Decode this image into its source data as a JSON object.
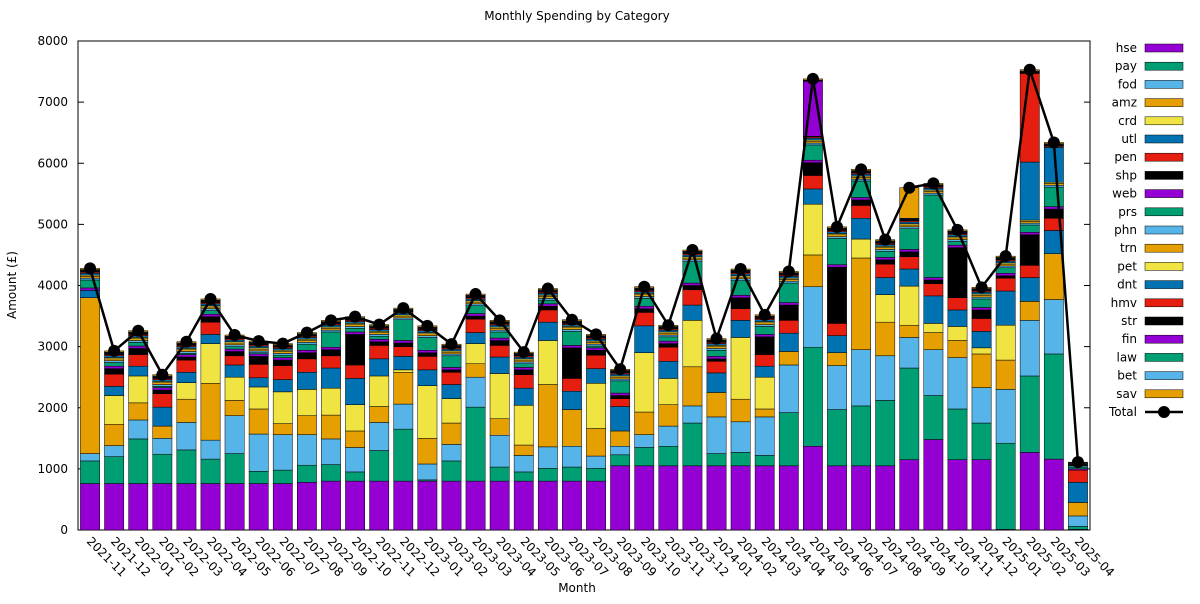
{
  "chart_data": {
    "type": "stacked-bar",
    "title": "Monthly Spending by Category",
    "x_label": "Month",
    "y_label": "Amount (£)",
    "ylim": [
      0,
      8000
    ],
    "yticks": [
      0,
      1000,
      2000,
      3000,
      4000,
      5000,
      6000,
      7000,
      8000
    ],
    "categories": [
      "2021-11",
      "2021-12",
      "2022-01",
      "2022-02",
      "2022-03",
      "2022-04",
      "2022-05",
      "2022-06",
      "2022-07",
      "2022-08",
      "2022-09",
      "2022-10",
      "2022-11",
      "2022-12",
      "2023-01",
      "2023-02",
      "2023-03",
      "2023-04",
      "2023-05",
      "2023-06",
      "2023-07",
      "2023-08",
      "2023-09",
      "2023-10",
      "2023-11",
      "2023-12",
      "2024-01",
      "2024-02",
      "2024-03",
      "2024-04",
      "2024-05",
      "2024-06",
      "2024-07",
      "2024-08",
      "2024-09",
      "2024-10",
      "2024-11",
      "2024-12",
      "2025-01",
      "2025-02",
      "2025-03",
      "2025-04"
    ],
    "series": [
      {
        "name": "hse",
        "color": "#9400d3",
        "values": [
          760,
          760,
          760,
          760,
          760,
          760,
          760,
          760,
          760,
          780,
          800,
          800,
          800,
          800,
          800,
          800,
          800,
          800,
          800,
          800,
          800,
          800,
          1050,
          1050,
          1050,
          1050,
          1050,
          1050,
          1050,
          1050,
          1370,
          1050,
          1050,
          1050,
          1150,
          1480,
          1150,
          1150,
          10,
          1270,
          1160,
          10
        ]
      },
      {
        "name": "pay",
        "color": "#009e73",
        "values": [
          370,
          440,
          730,
          480,
          550,
          400,
          490,
          200,
          220,
          280,
          270,
          150,
          500,
          850,
          20,
          330,
          1210,
          230,
          150,
          210,
          230,
          210,
          180,
          300,
          320,
          700,
          200,
          220,
          170,
          870,
          1620,
          920,
          980,
          1070,
          1500,
          720,
          830,
          600,
          1410,
          1250,
          1720,
          50
        ]
      },
      {
        "name": "fod",
        "color": "#56b4e9",
        "values": [
          120,
          180,
          310,
          260,
          450,
          310,
          620,
          610,
          580,
          500,
          420,
          400,
          460,
          410,
          260,
          270,
          490,
          520,
          270,
          350,
          340,
          200,
          140,
          210,
          330,
          280,
          600,
          500,
          630,
          780,
          990,
          720,
          920,
          730,
          500,
          750,
          840,
          580,
          880,
          910,
          890,
          170
        ]
      },
      {
        "name": "amz",
        "color": "#e69f00",
        "values": [
          2550,
          350,
          280,
          200,
          380,
          930,
          250,
          410,
          180,
          310,
          390,
          270,
          260,
          520,
          420,
          350,
          220,
          270,
          170,
          1020,
          600,
          450,
          250,
          370,
          350,
          640,
          400,
          370,
          130,
          220,
          520,
          210,
          1500,
          550,
          200,
          280,
          280,
          550,
          480,
          310,
          750,
          220
        ]
      },
      {
        "name": "crd",
        "color": "#f0e442",
        "values": [
          0,
          470,
          440,
          0,
          270,
          650,
          380,
          360,
          520,
          430,
          440,
          430,
          500,
          40,
          860,
          400,
          330,
          740,
          650,
          720,
          0,
          740,
          0,
          970,
          430,
          760,
          0,
          1010,
          520,
          0,
          830,
          0,
          310,
          450,
          640,
          150,
          230,
          100,
          570,
          0,
          0,
          0
        ]
      },
      {
        "name": "utl",
        "color": "#0072b2",
        "values": [
          120,
          150,
          160,
          310,
          170,
          150,
          200,
          150,
          200,
          280,
          330,
          430,
          280,
          220,
          260,
          230,
          180,
          270,
          280,
          300,
          300,
          240,
          400,
          440,
          280,
          250,
          320,
          280,
          180,
          300,
          250,
          280,
          340,
          280,
          280,
          450,
          270,
          270,
          560,
          390,
          380,
          330
        ]
      },
      {
        "name": "pen",
        "color": "#e51e10",
        "values": [
          0,
          200,
          190,
          220,
          200,
          200,
          150,
          220,
          230,
          220,
          200,
          220,
          220,
          160,
          220,
          200,
          220,
          190,
          220,
          200,
          210,
          220,
          130,
          220,
          230,
          250,
          190,
          190,
          190,
          210,
          220,
          200,
          210,
          220,
          200,
          200,
          200,
          210,
          210,
          200,
          200,
          200
        ]
      },
      {
        "name": "shp",
        "color": "#000000",
        "values": [
          0,
          90,
          100,
          60,
          50,
          90,
          70,
          130,
          90,
          100,
          100,
          500,
          60,
          60,
          60,
          40,
          50,
          80,
          80,
          60,
          500,
          80,
          50,
          60,
          60,
          70,
          40,
          180,
          290,
          250,
          210,
          920,
          90,
          70,
          80,
          60,
          820,
          140,
          40,
          500,
          150,
          0
        ]
      },
      {
        "name": "web",
        "color": "#9400d3",
        "values": [
          40,
          40,
          40,
          40,
          40,
          40,
          40,
          40,
          40,
          40,
          40,
          40,
          40,
          40,
          40,
          40,
          40,
          40,
          40,
          40,
          40,
          40,
          40,
          40,
          40,
          40,
          40,
          40,
          40,
          40,
          40,
          40,
          40,
          40,
          40,
          40,
          40,
          40,
          40,
          40,
          40,
          20
        ]
      },
      {
        "name": "prs",
        "color": "#009e73",
        "values": [
          130,
          60,
          60,
          20,
          20,
          60,
          40,
          20,
          40,
          100,
          250,
          60,
          50,
          340,
          210,
          190,
          130,
          100,
          60,
          60,
          230,
          30,
          200,
          130,
          70,
          350,
          100,
          240,
          130,
          320,
          250,
          430,
          270,
          100,
          340,
          1350,
          60,
          140,
          90,
          120,
          320,
          30
        ]
      },
      {
        "name": "phn",
        "color": "#56b4e9",
        "values": [
          30,
          30,
          30,
          30,
          30,
          30,
          30,
          30,
          30,
          30,
          30,
          30,
          30,
          30,
          30,
          30,
          30,
          30,
          30,
          30,
          30,
          30,
          30,
          30,
          30,
          30,
          30,
          30,
          30,
          30,
          30,
          30,
          30,
          30,
          30,
          30,
          30,
          30,
          30,
          30,
          30,
          20
        ]
      },
      {
        "name": "trn",
        "color": "#e69f00",
        "values": [
          30,
          30,
          30,
          30,
          30,
          30,
          30,
          30,
          30,
          30,
          30,
          30,
          30,
          30,
          30,
          30,
          30,
          30,
          30,
          30,
          30,
          30,
          30,
          30,
          30,
          30,
          30,
          30,
          30,
          30,
          30,
          30,
          30,
          30,
          30,
          30,
          30,
          30,
          30,
          30,
          30,
          10
        ]
      },
      {
        "name": "pet",
        "color": "#f0e442",
        "values": [
          20,
          20,
          20,
          20,
          20,
          20,
          20,
          20,
          20,
          20,
          20,
          20,
          20,
          20,
          20,
          20,
          20,
          20,
          20,
          20,
          20,
          20,
          20,
          20,
          20,
          20,
          20,
          20,
          20,
          20,
          20,
          20,
          20,
          20,
          20,
          20,
          20,
          20,
          20,
          20,
          20,
          10
        ]
      },
      {
        "name": "dnt",
        "color": "#0072b2",
        "values": [
          30,
          30,
          30,
          30,
          30,
          30,
          30,
          30,
          30,
          30,
          30,
          30,
          30,
          30,
          30,
          30,
          30,
          30,
          30,
          30,
          30,
          30,
          30,
          30,
          30,
          30,
          30,
          30,
          30,
          30,
          30,
          30,
          30,
          30,
          30,
          30,
          30,
          30,
          30,
          950,
          570,
          10
        ]
      },
      {
        "name": "hmv",
        "color": "#e51e10",
        "values": [
          20,
          20,
          20,
          20,
          20,
          20,
          20,
          20,
          20,
          20,
          20,
          20,
          20,
          20,
          20,
          20,
          20,
          20,
          20,
          20,
          20,
          20,
          20,
          20,
          20,
          20,
          20,
          20,
          20,
          20,
          20,
          20,
          20,
          20,
          20,
          20,
          20,
          20,
          20,
          1450,
          20,
          10
        ]
      },
      {
        "name": "str",
        "color": "#000000",
        "values": [
          10,
          10,
          10,
          10,
          10,
          10,
          10,
          10,
          10,
          10,
          10,
          10,
          10,
          10,
          10,
          10,
          10,
          10,
          10,
          10,
          10,
          10,
          10,
          10,
          10,
          10,
          10,
          10,
          10,
          10,
          10,
          10,
          10,
          10,
          10,
          10,
          10,
          10,
          10,
          10,
          10,
          0
        ]
      },
      {
        "name": "fin",
        "color": "#9400d3",
        "values": [
          10,
          10,
          10,
          10,
          10,
          10,
          10,
          10,
          10,
          10,
          10,
          10,
          10,
          10,
          10,
          10,
          10,
          10,
          10,
          10,
          10,
          10,
          10,
          10,
          10,
          10,
          10,
          10,
          10,
          10,
          900,
          10,
          10,
          10,
          10,
          10,
          10,
          10,
          10,
          10,
          10,
          0
        ]
      },
      {
        "name": "law",
        "color": "#009e73",
        "values": [
          10,
          10,
          10,
          10,
          10,
          10,
          10,
          10,
          10,
          10,
          10,
          10,
          10,
          10,
          10,
          10,
          10,
          10,
          10,
          10,
          10,
          10,
          10,
          10,
          10,
          10,
          10,
          10,
          10,
          10,
          10,
          10,
          10,
          10,
          10,
          10,
          10,
          10,
          10,
          10,
          10,
          0
        ]
      },
      {
        "name": "bet",
        "color": "#56b4e9",
        "values": [
          10,
          10,
          10,
          10,
          10,
          10,
          10,
          10,
          10,
          10,
          10,
          10,
          10,
          10,
          10,
          10,
          10,
          10,
          10,
          10,
          10,
          10,
          10,
          10,
          10,
          10,
          10,
          10,
          10,
          10,
          10,
          10,
          10,
          10,
          10,
          10,
          10,
          10,
          10,
          10,
          10,
          10
        ]
      },
      {
        "name": "sav",
        "color": "#e69f00",
        "values": [
          20,
          20,
          20,
          20,
          20,
          20,
          20,
          20,
          20,
          20,
          20,
          20,
          20,
          20,
          20,
          20,
          20,
          20,
          20,
          20,
          20,
          20,
          20,
          20,
          20,
          20,
          20,
          20,
          20,
          20,
          20,
          20,
          20,
          20,
          500,
          20,
          20,
          20,
          20,
          20,
          20,
          10
        ]
      }
    ],
    "total": {
      "name": "Total",
      "color": "#000000",
      "values": [
        4280,
        2930,
        3260,
        2540,
        3080,
        3780,
        3190,
        3090,
        3050,
        3230,
        3430,
        3490,
        3360,
        3630,
        3340,
        3040,
        3860,
        3430,
        2910,
        3950,
        3440,
        3200,
        2630,
        3980,
        3350,
        4580,
        3130,
        4270,
        3520,
        4230,
        7380,
        4960,
        5900,
        4750,
        5600,
        5670,
        4910,
        3970,
        4480,
        7530,
        6340,
        1110
      ]
    }
  }
}
